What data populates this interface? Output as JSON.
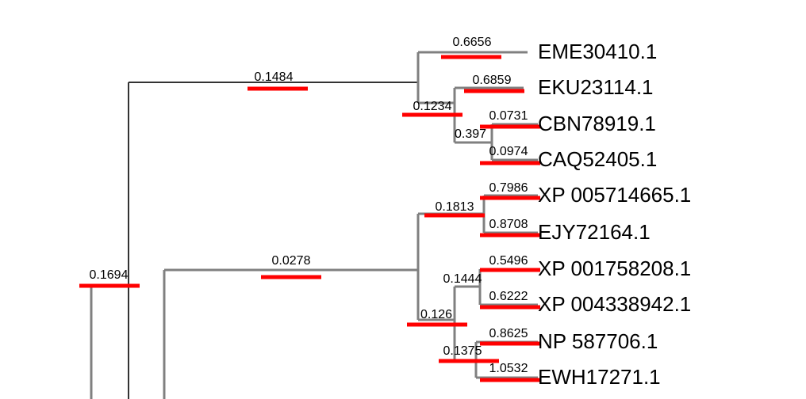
{
  "leaves": [
    "EME30410.1",
    "EKU23114.1",
    "CBN78919.1",
    "CAQ52405.1",
    "XP 005714665.1",
    "EJY72164.1",
    "XP 001758208.1",
    "XP 004338942.1",
    "NP 587706.1",
    "EWH17271.1"
  ],
  "branch_labels": [
    "0.6656",
    "0.1484",
    "0.6859",
    "0.1234",
    "0.0731",
    "0.397",
    "0.0974",
    "0.7986",
    "0.1813",
    "0.8708",
    "0.0278",
    "0.1694",
    "0.5496",
    "0.1444",
    "0.6222",
    "0.126",
    "0.8625",
    "0.1375",
    "1.0532"
  ]
}
